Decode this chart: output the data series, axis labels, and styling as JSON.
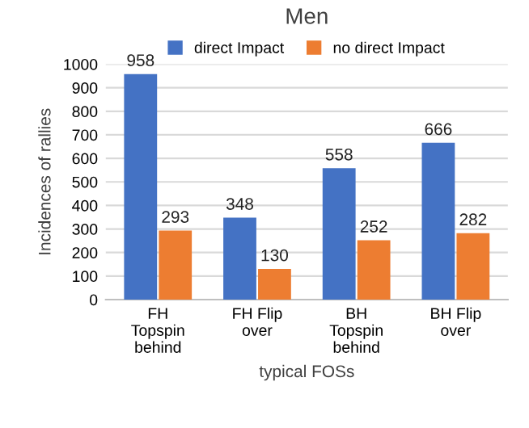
{
  "chart_data": {
    "type": "bar",
    "title": "Men",
    "xlabel": "typical FOSs",
    "ylabel": "Incidences of rallies",
    "categories": [
      "FH\nTopspin\nbehind",
      "FH Flip\nover",
      "BH\nTopspin\nbehind",
      "BH Flip\nover"
    ],
    "series": [
      {
        "name": "direct Impact",
        "color": "#4472c4",
        "values": [
          958,
          348,
          558,
          666
        ]
      },
      {
        "name": "no direct Impact",
        "color": "#ed7d31",
        "values": [
          293,
          130,
          252,
          282
        ]
      }
    ],
    "ylim": [
      0,
      1000
    ],
    "yticks": [
      0,
      100,
      200,
      300,
      400,
      500,
      600,
      700,
      800,
      900,
      1000
    ],
    "grid": "y",
    "legend": "top",
    "data_labels": true
  }
}
